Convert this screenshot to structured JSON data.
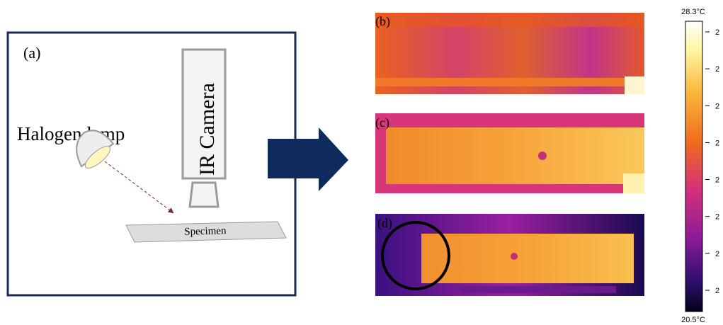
{
  "panel_a": {
    "label": "(a)",
    "lamp": "Halogen lamp",
    "camera": "IR Camera",
    "specimen": "Specimen"
  },
  "panels": [
    {
      "label": "(b)"
    },
    {
      "label": "(c)"
    },
    {
      "label": "(d)"
    }
  ],
  "colorbar": {
    "max": "28.3°C",
    "min": "20.5°C",
    "ticks": [
      "2",
      "2",
      "2",
      "2",
      "2",
      "2",
      "2",
      "2"
    ]
  }
}
